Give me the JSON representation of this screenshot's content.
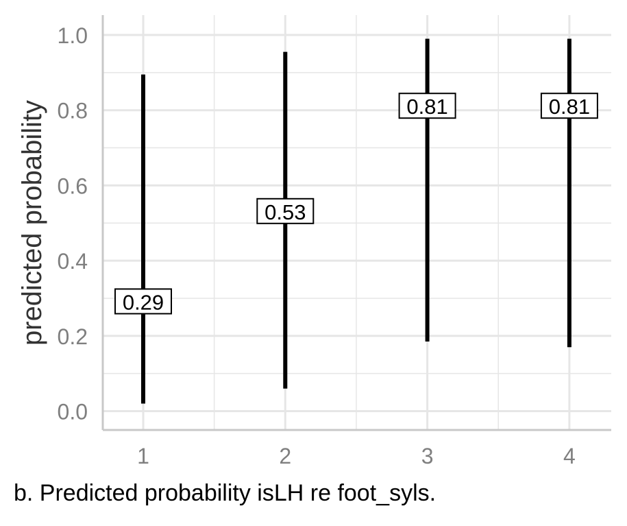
{
  "chart_data": {
    "type": "errorbar",
    "categories": [
      "1",
      "2",
      "3",
      "4"
    ],
    "x": [
      1,
      2,
      3,
      4
    ],
    "values": [
      0.29,
      0.53,
      0.81,
      0.81
    ],
    "lower": [
      0.02,
      0.06,
      0.185,
      0.17
    ],
    "upper": [
      0.895,
      0.955,
      0.99,
      0.99
    ],
    "labels": [
      "0.29",
      "0.53",
      "0.81",
      "0.81"
    ],
    "ylabel": "predicted probability",
    "xlabel": "",
    "ylim": [
      -0.05,
      1.05
    ],
    "yticks": [
      "0.0",
      "0.2",
      "0.4",
      "0.6",
      "0.8",
      "1.0"
    ],
    "xticks": [
      "1",
      "2",
      "3",
      "4"
    ],
    "grid": true,
    "colors": {
      "bar": "#000000",
      "grid": "#e6e6e6",
      "axis": "#c8c8c8",
      "tick_text": "#7f7f7f",
      "label_text": "#333333"
    }
  },
  "caption": "b. Predicted probability isLH re foot_syls."
}
